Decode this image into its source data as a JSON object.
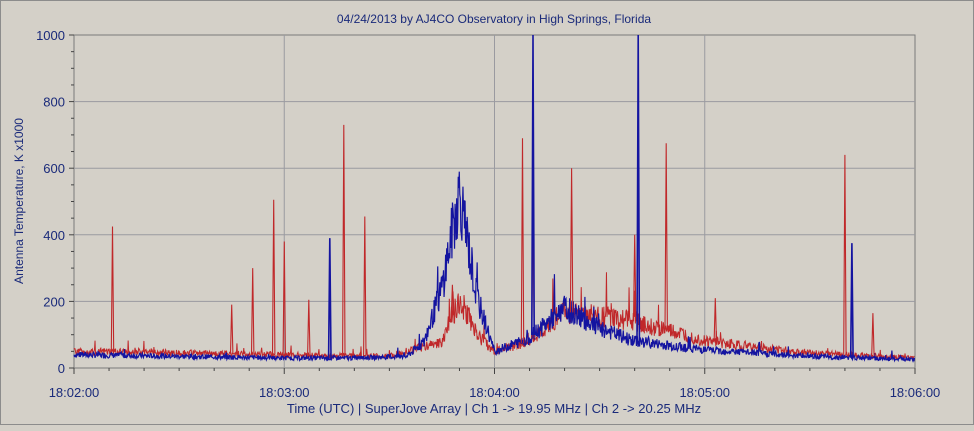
{
  "chart_data": {
    "type": "line",
    "title": "04/24/2013  by  AJ4CO Observatory  in  High Springs, Florida",
    "xlabel": "Time (UTC)  |  SuperJove Array  |  Ch 1 -> 19.95 MHz  |  Ch 2 -> 20.25 MHz",
    "ylabel": "Antenna Temperature, K x1000",
    "xlim": [
      "18:02:00",
      "18:06:00"
    ],
    "ylim": [
      0,
      1000
    ],
    "x_ticks": [
      "18:02:00",
      "18:03:00",
      "18:04:00",
      "18:05:00",
      "18:06:00"
    ],
    "y_ticks": [
      0,
      200,
      400,
      600,
      800,
      1000
    ],
    "grid": true,
    "colors": {
      "ch1": "#1414a0",
      "ch2": "#c0282a",
      "grid": "#9a9aa0",
      "plot_bg": "#d4d0c8",
      "text": "#1a2a7a"
    },
    "series": [
      {
        "key": "ch1",
        "x_seconds": [
          "18:02:00",
          "18:02:30",
          "18:03:00",
          "18:03:20",
          "18:03:35",
          "18:03:40",
          "18:03:45",
          "18:03:50",
          "18:03:55",
          "18:04:00",
          "18:04:10",
          "18:04:20",
          "18:04:30",
          "18:04:40",
          "18:05:00",
          "18:05:30",
          "18:06:00"
        ],
        "values": [
          40,
          35,
          30,
          30,
          35,
          80,
          240,
          530,
          210,
          50,
          90,
          180,
          120,
          80,
          55,
          35,
          25
        ],
        "spikes": [
          {
            "x": "18:03:13",
            "y": 390
          },
          {
            "x": "18:04:11",
            "y": 1000
          },
          {
            "x": "18:04:41",
            "y": 1000
          },
          {
            "x": "18:05:42",
            "y": 375
          }
        ]
      },
      {
        "key": "ch2",
        "x_seconds": [
          "18:02:00",
          "18:02:30",
          "18:03:00",
          "18:03:30",
          "18:03:45",
          "18:03:50",
          "18:03:55",
          "18:04:00",
          "18:04:10",
          "18:04:20",
          "18:04:40",
          "18:05:00",
          "18:05:30",
          "18:06:00"
        ],
        "values": [
          50,
          45,
          40,
          35,
          80,
          210,
          100,
          50,
          80,
          170,
          140,
          80,
          45,
          30
        ],
        "spikes": [
          {
            "x": "18:02:11",
            "y": 425
          },
          {
            "x": "18:02:45",
            "y": 190
          },
          {
            "x": "18:02:51",
            "y": 300
          },
          {
            "x": "18:02:57",
            "y": 505
          },
          {
            "x": "18:03:00",
            "y": 380
          },
          {
            "x": "18:03:07",
            "y": 205
          },
          {
            "x": "18:03:17",
            "y": 730
          },
          {
            "x": "18:03:23",
            "y": 455
          },
          {
            "x": "18:03:48",
            "y": 250
          },
          {
            "x": "18:04:08",
            "y": 690
          },
          {
            "x": "18:04:11",
            "y": 520
          },
          {
            "x": "18:04:22",
            "y": 600
          },
          {
            "x": "18:04:40",
            "y": 400
          },
          {
            "x": "18:04:49",
            "y": 675
          },
          {
            "x": "18:05:03",
            "y": 210
          },
          {
            "x": "18:05:40",
            "y": 640
          },
          {
            "x": "18:05:48",
            "y": 165
          }
        ]
      }
    ]
  }
}
